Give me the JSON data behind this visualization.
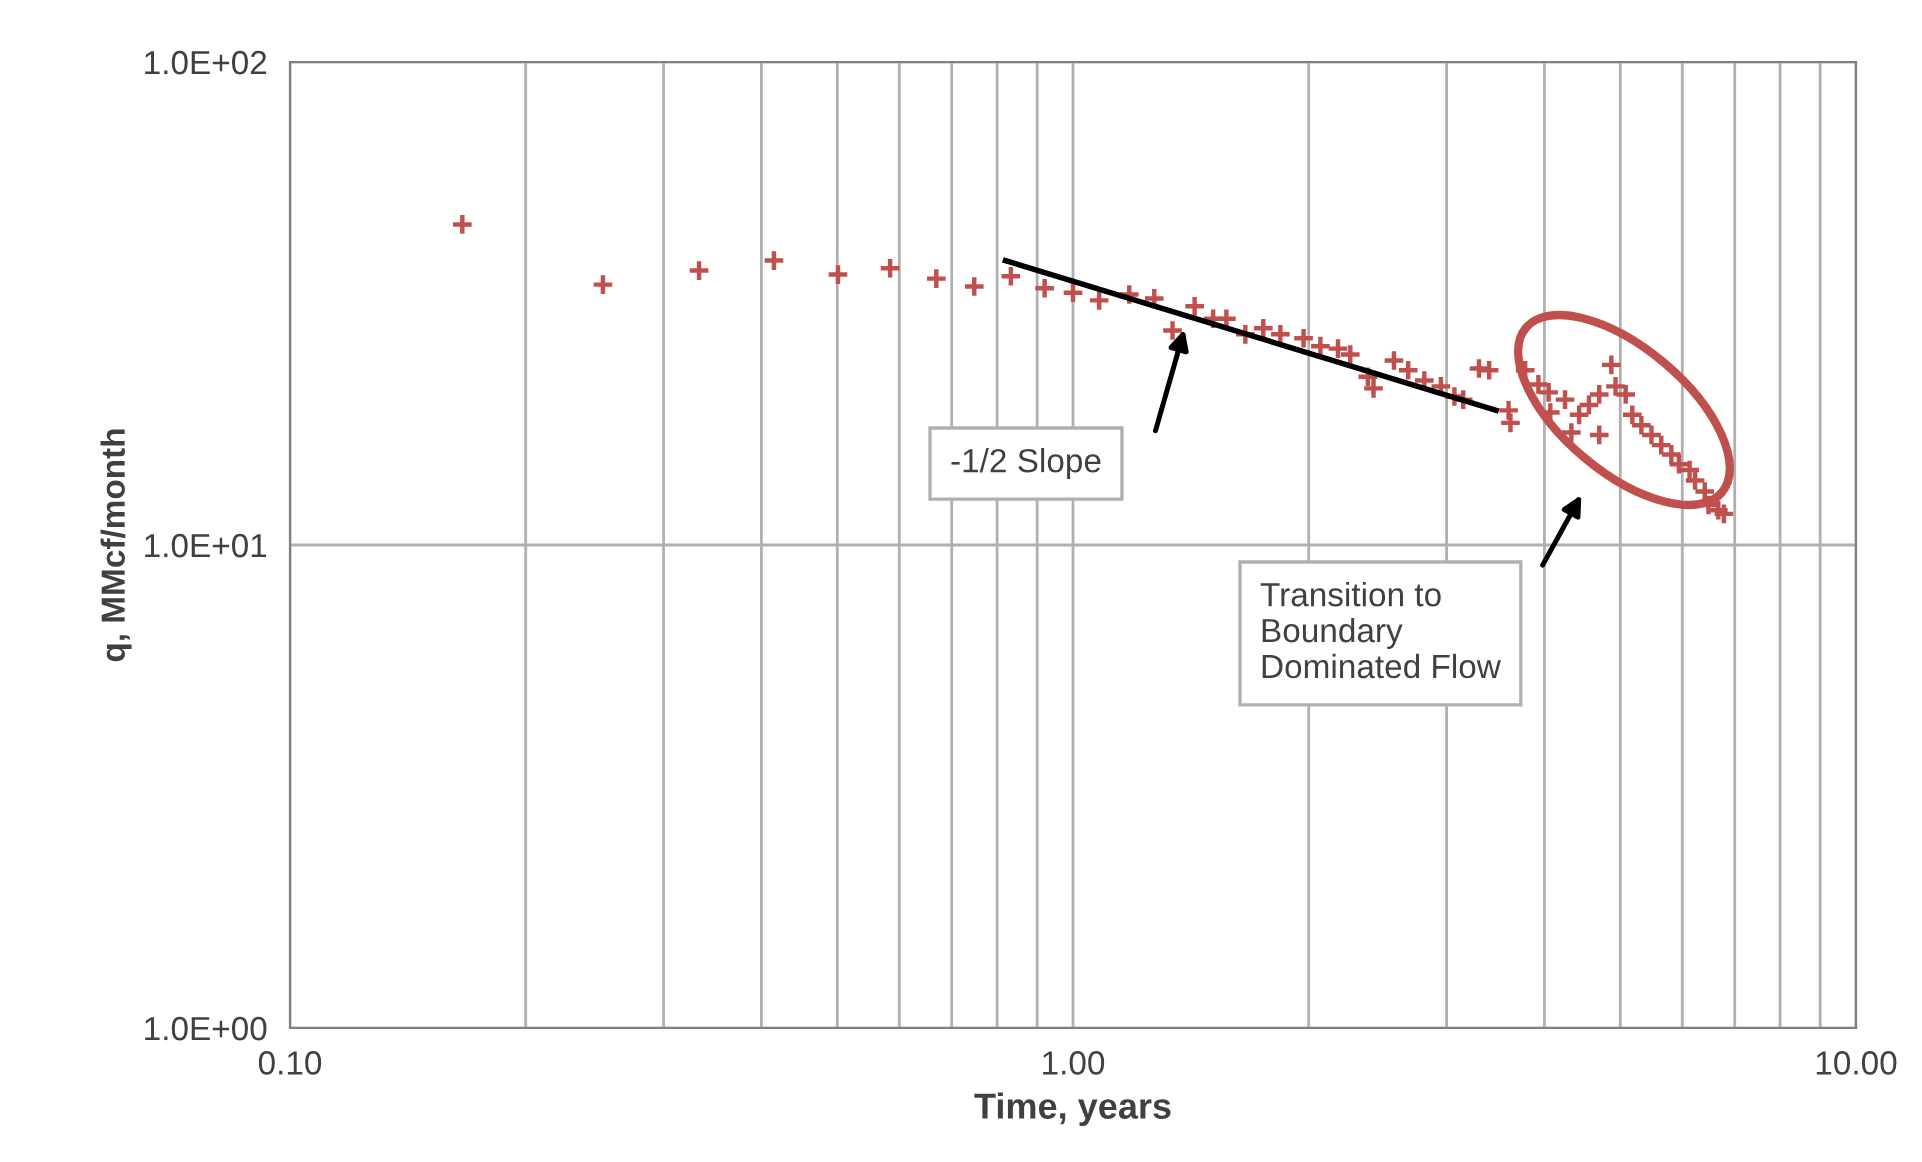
{
  "chart_data": {
    "type": "scatter",
    "xlabel": "Time, years",
    "ylabel": "q, MMcf/month",
    "log": "xy",
    "xlim": [
      0.1,
      10
    ],
    "ylim": [
      1,
      100
    ],
    "xticks": [
      {
        "value": 0.1,
        "label": "0.10"
      },
      {
        "value": 0.2,
        "label": null
      },
      {
        "value": 0.3,
        "label": null
      },
      {
        "value": 0.4,
        "label": null
      },
      {
        "value": 0.5,
        "label": null
      },
      {
        "value": 0.6,
        "label": null
      },
      {
        "value": 0.7,
        "label": null
      },
      {
        "value": 0.8,
        "label": null
      },
      {
        "value": 0.9,
        "label": null
      },
      {
        "value": 1,
        "label": "1.00"
      },
      {
        "value": 2,
        "label": null
      },
      {
        "value": 3,
        "label": null
      },
      {
        "value": 4,
        "label": null
      },
      {
        "value": 5,
        "label": null
      },
      {
        "value": 6,
        "label": null
      },
      {
        "value": 7,
        "label": null
      },
      {
        "value": 8,
        "label": null
      },
      {
        "value": 9,
        "label": null
      },
      {
        "value": 10,
        "label": "10.00"
      }
    ],
    "yticks": [
      {
        "value": 1,
        "label": "1.0E+00"
      },
      {
        "value": 10,
        "label": "1.0E+01"
      },
      {
        "value": 100,
        "label": "1.0E+02"
      }
    ],
    "grid": true,
    "legend": false,
    "marker": "cross",
    "series": [
      {
        "color": "#c0504d",
        "x": [
          0.166,
          0.251,
          0.333,
          0.415,
          0.501,
          0.584,
          0.669,
          0.748,
          0.833,
          0.92,
          1.0,
          1.08,
          1.18,
          1.27,
          1.34,
          1.43,
          1.51,
          1.57,
          1.66,
          1.75,
          1.84,
          1.97,
          2.07,
          2.18,
          2.26,
          2.38,
          2.42,
          2.57,
          2.68,
          2.81,
          2.95,
          3.07,
          3.15,
          3.3,
          3.4,
          3.6,
          3.62,
          3.78,
          3.93,
          4.05,
          4.07,
          4.25,
          4.33,
          4.43,
          4.56,
          4.7,
          4.7,
          4.87,
          4.93,
          5.08,
          5.18,
          5.32,
          5.48,
          5.64,
          5.81,
          5.94,
          6.13,
          6.23,
          6.41,
          6.48,
          6.67,
          6.78
        ],
        "values": [
          46.1,
          34.6,
          37.0,
          38.8,
          36.3,
          37.4,
          35.6,
          34.3,
          36.0,
          34.0,
          33.3,
          32.1,
          33.0,
          32.4,
          27.8,
          31.2,
          29.4,
          29.4,
          27.3,
          28.1,
          27.3,
          26.8,
          25.8,
          25.5,
          24.8,
          22.3,
          21.1,
          24.1,
          23.0,
          21.9,
          21.3,
          20.3,
          20.0,
          23.2,
          23.0,
          19.0,
          17.9,
          23.0,
          21.5,
          20.7,
          18.8,
          20.0,
          17.1,
          18.6,
          19.5,
          16.9,
          20.5,
          23.6,
          21.3,
          20.5,
          18.6,
          17.7,
          16.9,
          16.1,
          15.4,
          14.7,
          14.3,
          13.6,
          12.9,
          12.1,
          11.8,
          11.6
        ]
      },
      {
        "type": "line",
        "color": "#000000",
        "marker": "none",
        "line_style": "solid",
        "x": [
          0.82,
          3.47
        ],
        "values": [
          38.8,
          19.0
        ]
      }
    ],
    "annotations": [
      "-1/2 Slope",
      "Transition to\nBoundary\nDominated Flow"
    ]
  }
}
